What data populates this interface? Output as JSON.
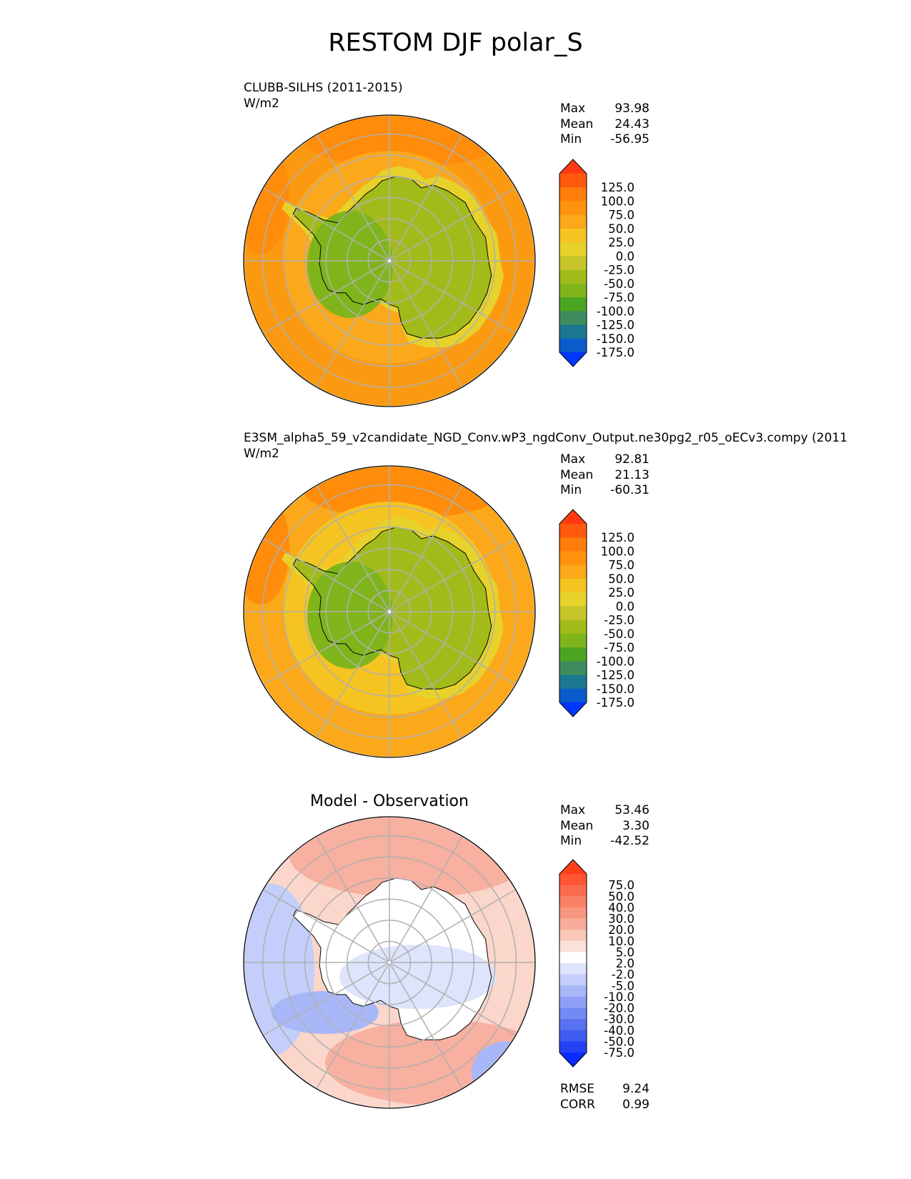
{
  "title": "RESTOM DJF polar_S",
  "panels": [
    {
      "id": "test",
      "title_lines": [
        "CLUBB-SILHS (2011-2015)",
        "W/m2"
      ],
      "stats": [
        [
          "Max",
          "93.98"
        ],
        [
          "Mean",
          "24.43"
        ],
        [
          "Min",
          "-56.95"
        ]
      ],
      "colorbar": {
        "ticks": [
          "125.0",
          "100.0",
          "75.0",
          "50.0",
          "25.0",
          "0.0",
          "-25.0",
          "-50.0",
          "-75.0",
          "-100.0",
          "-125.0",
          "-150.0",
          "-175.0"
        ],
        "colors": [
          "#ff3a12",
          "#ff5a0e",
          "#ff7d0a",
          "#ff930e",
          "#fba81b",
          "#f5c420",
          "#e6d22a",
          "#c7c52a",
          "#a2bb1b",
          "#7fb51b",
          "#4ca520",
          "#3e8c5d",
          "#1c7890",
          "#0a5ccc",
          "#0035ff"
        ]
      }
    },
    {
      "id": "reference",
      "title_lines": [
        "E3SM_alpha5_59_v2candidate_NGD_Conv.wP3_ngdConv_Output.ne30pg2_r05_oECv3.compy (2011",
        "W/m2"
      ],
      "stats": [
        [
          "Max",
          "92.81"
        ],
        [
          "Mean",
          "21.13"
        ],
        [
          "Min",
          "-60.31"
        ]
      ],
      "colorbar": {
        "ticks": [
          "125.0",
          "100.0",
          "75.0",
          "50.0",
          "25.0",
          "0.0",
          "-25.0",
          "-50.0",
          "-75.0",
          "-100.0",
          "-125.0",
          "-150.0",
          "-175.0"
        ],
        "colors": [
          "#ff3a12",
          "#ff5a0e",
          "#ff7d0a",
          "#ff930e",
          "#fba81b",
          "#f5c420",
          "#e6d22a",
          "#c7c52a",
          "#a2bb1b",
          "#7fb51b",
          "#4ca520",
          "#3e8c5d",
          "#1c7890",
          "#0a5ccc",
          "#0035ff"
        ]
      }
    },
    {
      "id": "difference",
      "title_lines": [
        "Model - Observation"
      ],
      "stats": [
        [
          "Max",
          "53.46"
        ],
        [
          "Mean",
          "3.30"
        ],
        [
          "Min",
          "-42.52"
        ]
      ],
      "metrics": [
        [
          "RMSE",
          "9.24"
        ],
        [
          "CORR",
          "0.99"
        ]
      ],
      "colorbar": {
        "ticks": [
          "75.0",
          "50.0",
          "40.0",
          "30.0",
          "20.0",
          "10.0",
          "5.0",
          "2.0",
          "-2.0",
          "-5.0",
          "-10.0",
          "-20.0",
          "-30.0",
          "-40.0",
          "-50.0",
          "-75.0"
        ],
        "colors": [
          "#ff3f1a",
          "#ff5533",
          "#fc6a4e",
          "#fa8066",
          "#f8967f",
          "#f7ad9a",
          "#f8c8b8",
          "#fae0d6",
          "#ffffff",
          "#dde4fb",
          "#c3cefa",
          "#a8b7f8",
          "#8ea0f6",
          "#7389f4",
          "#5872f2",
          "#3e5cf0",
          "#2442f5",
          "#0a2bff"
        ]
      }
    }
  ],
  "chart_data": [
    {
      "type": "heatmap",
      "projection": "south polar stereographic",
      "title": "CLUBB-SILHS (2011-2015)",
      "units": "W/m2",
      "stats": {
        "Max": 93.98,
        "Mean": 24.43,
        "Min": -56.95
      },
      "contour_levels": [
        -175,
        -150,
        -125,
        -100,
        -75,
        -50,
        -25,
        0,
        25,
        50,
        75,
        100,
        125
      ],
      "colorbar_extend": "both"
    },
    {
      "type": "heatmap",
      "projection": "south polar stereographic",
      "title": "E3SM_alpha5_59_v2candidate_NGD_Conv.wP3_ngdConv_Output.ne30pg2_r05_oECv3.compy (2011",
      "units": "W/m2",
      "stats": {
        "Max": 92.81,
        "Mean": 21.13,
        "Min": -60.31
      },
      "contour_levels": [
        -175,
        -150,
        -125,
        -100,
        -75,
        -50,
        -25,
        0,
        25,
        50,
        75,
        100,
        125
      ],
      "colorbar_extend": "both"
    },
    {
      "type": "heatmap",
      "projection": "south polar stereographic",
      "title": "Model - Observation",
      "stats": {
        "Max": 53.46,
        "Mean": 3.3,
        "Min": -42.52
      },
      "metrics": {
        "RMSE": 9.24,
        "CORR": 0.99
      },
      "contour_levels": [
        -75,
        -50,
        -40,
        -30,
        -20,
        -10,
        -5,
        -2,
        2,
        5,
        10,
        20,
        30,
        40,
        50,
        75
      ],
      "colorbar_extend": "both"
    }
  ]
}
